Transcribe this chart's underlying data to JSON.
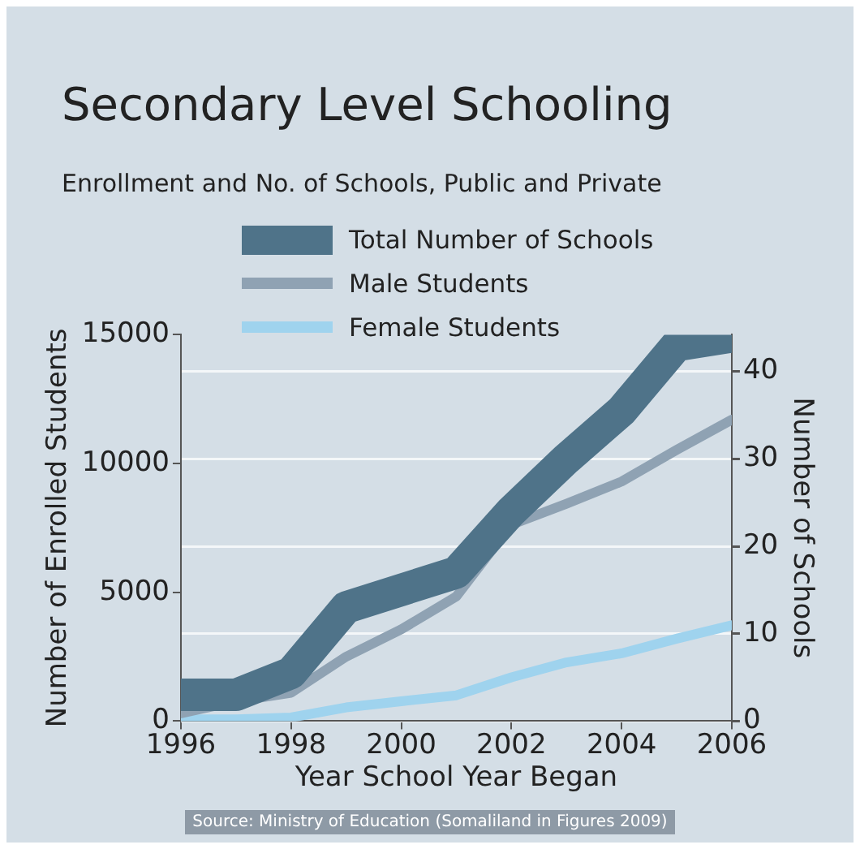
{
  "chart_data": {
    "type": "line",
    "title": "Secondary Level Schooling",
    "subtitle": "Enrollment and No. of Schools, Public and Private",
    "xlabel": "Year School Year Began",
    "ylabel": "Number of Enrolled Students",
    "y2label": "Number of Schools",
    "x": [
      1996,
      1997,
      1998,
      1999,
      2000,
      2001,
      2002,
      2003,
      2004,
      2005,
      2006
    ],
    "series": [
      {
        "name": "Total Number of Schools",
        "color": "#4f7389",
        "axis": "y2",
        "values": [
          3,
          3,
          5.5,
          13,
          15,
          17,
          24,
          30,
          35.5,
          43,
          44
        ]
      },
      {
        "name": "Male Students",
        "color": "#8fa2b3",
        "values": [
          300,
          770,
          1100,
          2500,
          3560,
          4840,
          7630,
          8440,
          9300,
          10530,
          11700
        ]
      },
      {
        "name": "Female Students",
        "color": "#9fd3ee",
        "values": [
          70,
          70,
          140,
          530,
          770,
          1000,
          1700,
          2280,
          2630,
          3200,
          3720
        ]
      }
    ],
    "xlim": [
      1996,
      2006
    ],
    "xticks": [
      1996,
      1998,
      2000,
      2002,
      2004,
      2006
    ],
    "ylim": [
      0,
      15000
    ],
    "yticks": [
      0,
      5000,
      10000,
      15000
    ],
    "y2lim": [
      0,
      44.2
    ],
    "y2ticks": [
      0,
      10,
      20,
      30,
      40
    ],
    "grid": true,
    "legend": "top left",
    "marker": "none",
    "line_style": "solid",
    "annotations": [
      "Source: Ministry of Education (Somaliland in Figures 2009)"
    ]
  }
}
